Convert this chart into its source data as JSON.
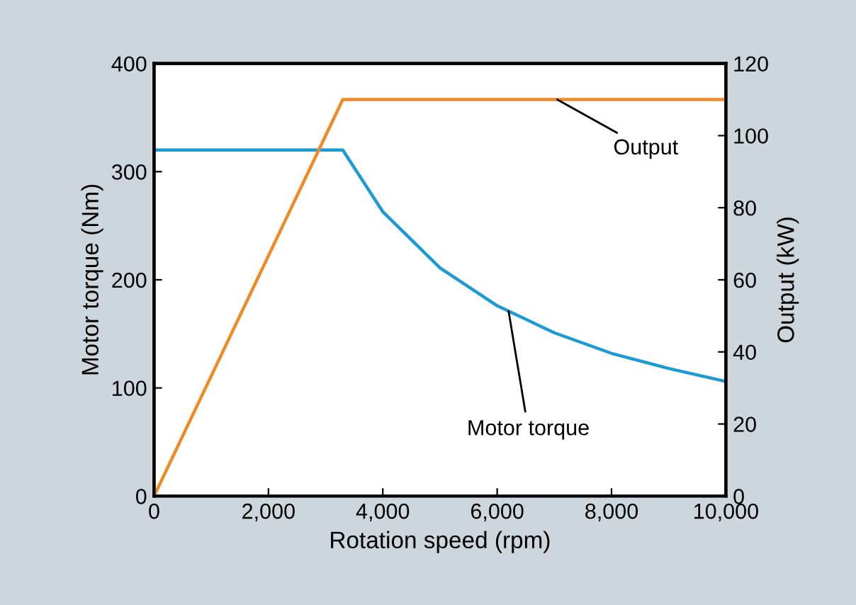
{
  "chart_data": {
    "type": "line",
    "xlabel": "Rotation speed (rpm)",
    "ylabel": "Motor torque (Nm)",
    "y2label": "Output (kW)",
    "xlim": [
      0,
      10000
    ],
    "xticks": [
      0,
      {
        "value": 2000,
        "label": "2,000"
      },
      {
        "value": 4000,
        "label": "4,000"
      },
      {
        "value": 6000,
        "label": "6,000"
      },
      {
        "value": 8000,
        "label": "8,000"
      },
      {
        "value": 10000,
        "label": "10,000"
      }
    ],
    "ylim": [
      0,
      400
    ],
    "yticks": [
      0,
      100,
      200,
      300,
      400
    ],
    "y2lim": [
      0,
      120
    ],
    "y2ticks": [
      0,
      20,
      40,
      60,
      80,
      100,
      120
    ],
    "grid": false,
    "legend": false,
    "series": [
      {
        "name": "Motor torque",
        "color": "#1b9ad6",
        "x": [
          0,
          3300,
          4000,
          5000,
          6000,
          7000,
          8000,
          9000,
          10000
        ],
        "values": [
          320,
          320,
          263,
          211,
          176,
          151,
          132,
          118,
          106
        ]
      },
      {
        "name": "Output",
        "color": "#f08a24",
        "axis": "y2",
        "x": [
          0,
          3300,
          10000
        ],
        "values": [
          0,
          110,
          110
        ]
      }
    ]
  }
}
